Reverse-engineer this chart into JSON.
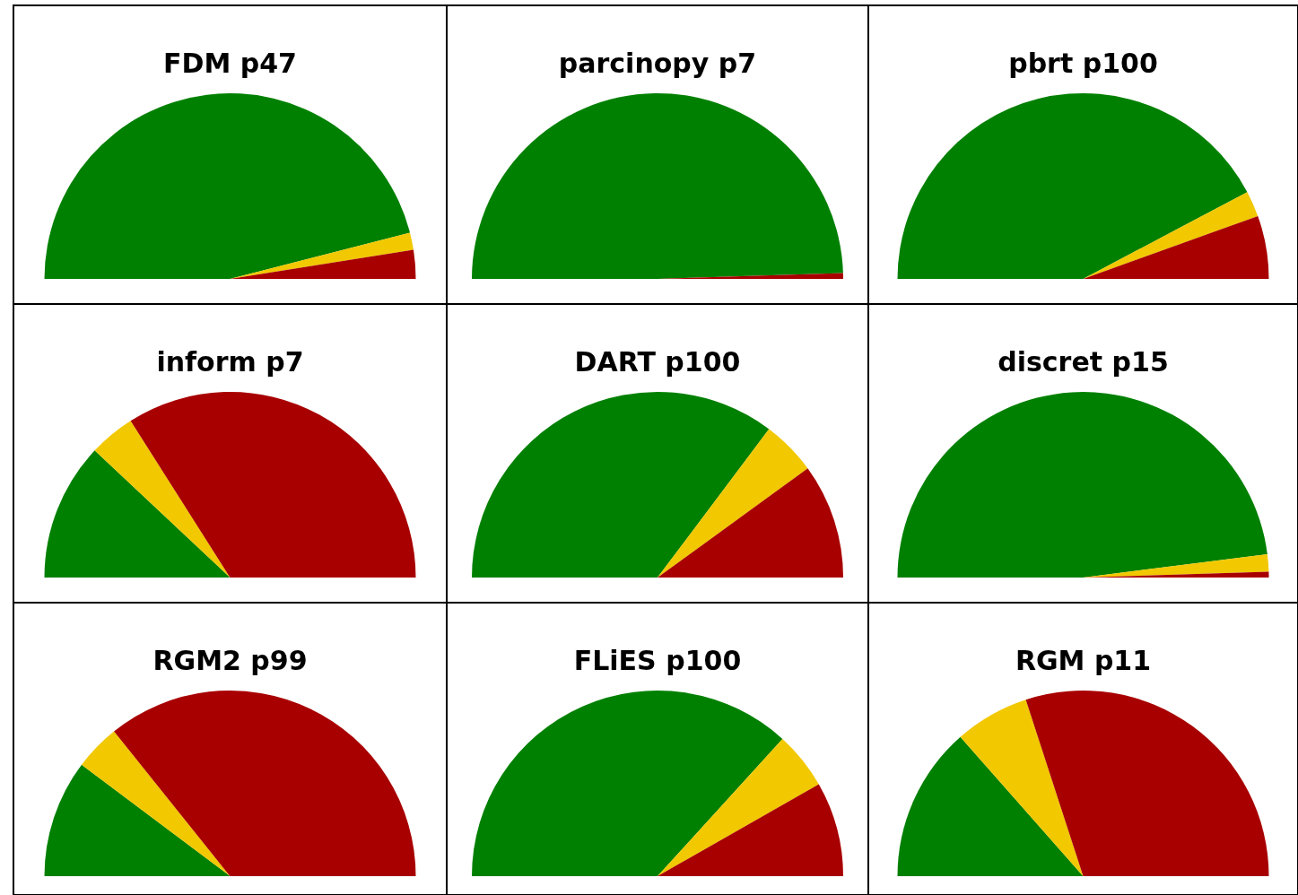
{
  "chart_data": [
    {
      "type": "pie",
      "title": "FDM p47",
      "categories": [
        null,
        null,
        null
      ],
      "values": [
        92,
        3,
        5
      ],
      "colors": [
        "#008000",
        "#f2c800",
        "#a80000"
      ]
    },
    {
      "type": "pie",
      "title": "parcinopy p7",
      "categories": [
        null,
        null,
        null
      ],
      "values": [
        99,
        0,
        1
      ],
      "colors": [
        "#008000",
        "#f2c800",
        "#a80000"
      ]
    },
    {
      "type": "pie",
      "title": "pbrt p100",
      "categories": [
        null,
        null,
        null
      ],
      "values": [
        84.5,
        4.5,
        11
      ],
      "colors": [
        "#008000",
        "#f2c800",
        "#a80000"
      ]
    },
    {
      "type": "pie",
      "title": "inform p7",
      "categories": [
        null,
        null,
        null
      ],
      "values": [
        24,
        8,
        68
      ],
      "colors": [
        "#008000",
        "#f2c800",
        "#a80000"
      ]
    },
    {
      "type": "pie",
      "title": "DART p100",
      "categories": [
        null,
        null,
        null
      ],
      "values": [
        70.5,
        9.5,
        20
      ],
      "colors": [
        "#008000",
        "#f2c800",
        "#a80000"
      ]
    },
    {
      "type": "pie",
      "title": "discret p15",
      "categories": [
        null,
        null,
        null
      ],
      "values": [
        96,
        3,
        1
      ],
      "colors": [
        "#008000",
        "#f2c800",
        "#a80000"
      ]
    },
    {
      "type": "pie",
      "title": "RGM2 p99",
      "categories": [
        null,
        null,
        null
      ],
      "values": [
        20.5,
        8,
        71.5
      ],
      "colors": [
        "#008000",
        "#f2c800",
        "#a80000"
      ]
    },
    {
      "type": "pie",
      "title": "FLiES p100",
      "categories": [
        null,
        null,
        null
      ],
      "values": [
        73.5,
        10,
        16.5
      ],
      "colors": [
        "#008000",
        "#f2c800",
        "#a80000"
      ]
    },
    {
      "type": "pie",
      "title": "RGM p11",
      "categories": [
        null,
        null,
        null
      ],
      "values": [
        27,
        13,
        60
      ],
      "colors": [
        "#008000",
        "#f2c800",
        "#a80000"
      ]
    }
  ]
}
